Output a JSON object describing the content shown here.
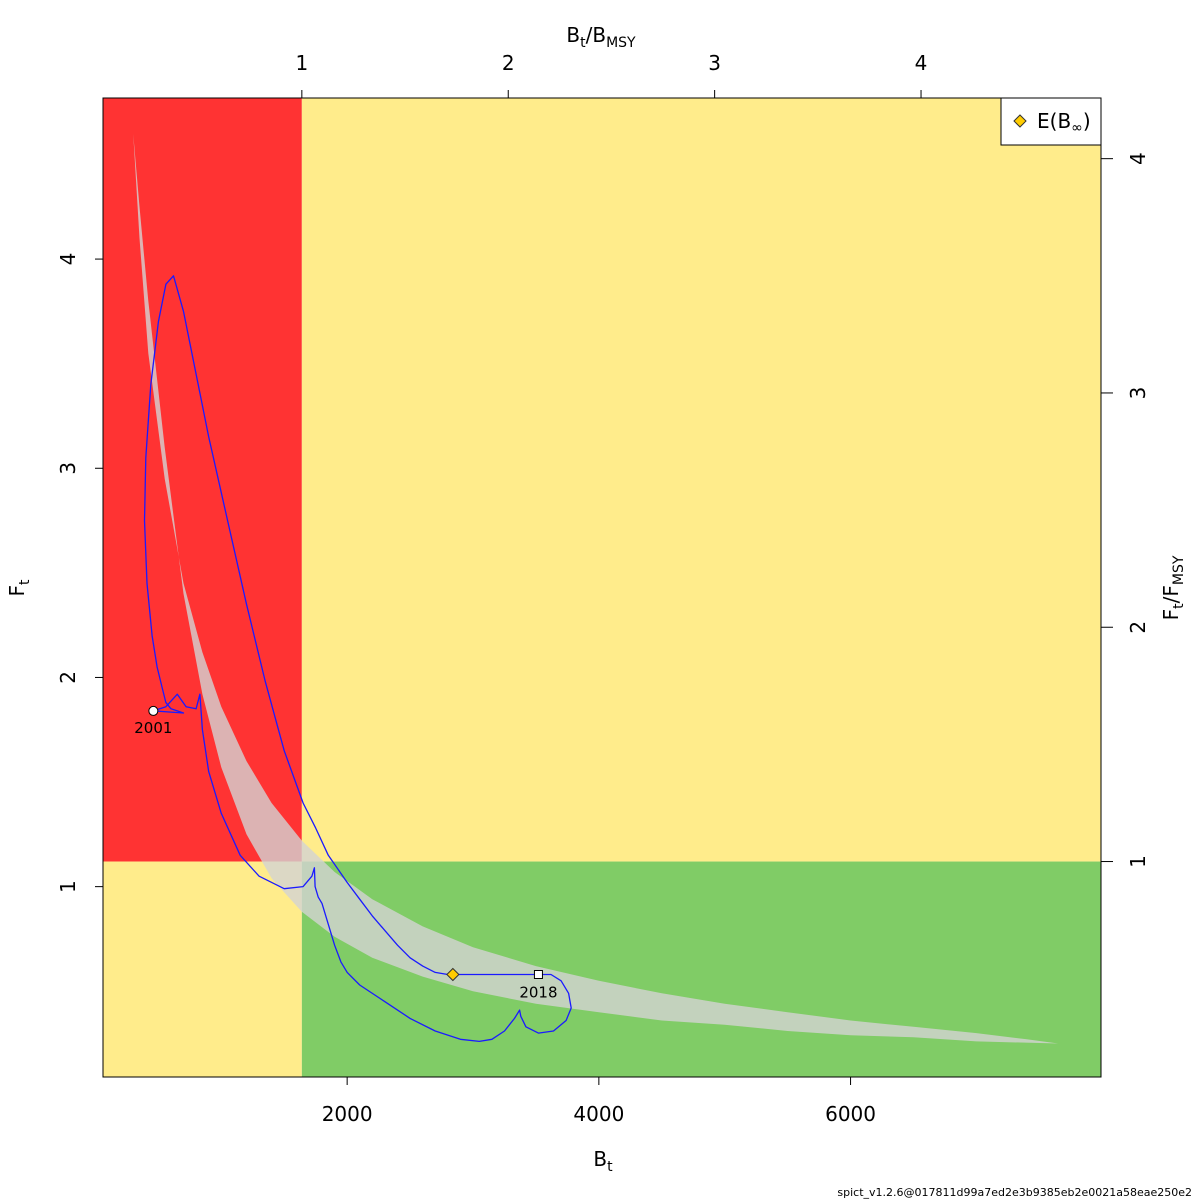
{
  "chart_data": {
    "type": "scatter",
    "title": "",
    "x_axis": {
      "label": "B",
      "label_sub": "t",
      "range": [
        60,
        7990
      ],
      "ticks": [
        2000,
        4000,
        6000
      ],
      "tick_labels": [
        "2000",
        "4000",
        "6000"
      ]
    },
    "y_axis": {
      "label": "F",
      "label_sub": "t",
      "range": [
        0.09,
        4.77
      ],
      "ticks": [
        1,
        2,
        3,
        4
      ],
      "tick_labels": [
        "1",
        "2",
        "3",
        "4"
      ]
    },
    "top_axis": {
      "label_num": "B",
      "label_num_sub": "t",
      "label_den": "B",
      "label_den_sub": "MSY",
      "ticks": [
        1,
        2,
        3,
        4
      ],
      "tick_labels": [
        "1",
        "2",
        "3",
        "4"
      ],
      "bmsy": 1640
    },
    "right_axis": {
      "label_num": "F",
      "label_num_sub": "t",
      "label_den": "F",
      "label_den_sub": "MSY",
      "ticks": [
        1,
        2,
        3,
        4
      ],
      "tick_labels": [
        "1",
        "2",
        "3",
        "4"
      ],
      "fmsy": 1.12
    },
    "zone_colors": {
      "overfished_overfishing": "#ff3333",
      "mixed": "#ffec8b",
      "healthy": "#80cc66",
      "confidence_region": "#d3d3d3",
      "trajectory": "#1a1aff"
    },
    "confidence_region": {
      "upper": [
        [
          300,
          4.6
        ],
        [
          350,
          4.1
        ],
        [
          420,
          3.55
        ],
        [
          550,
          2.95
        ],
        [
          700,
          2.45
        ],
        [
          850,
          2.12
        ],
        [
          1000,
          1.86
        ],
        [
          1200,
          1.6
        ],
        [
          1400,
          1.4
        ],
        [
          1640,
          1.22
        ],
        [
          1900,
          1.07
        ],
        [
          2200,
          0.94
        ],
        [
          2600,
          0.81
        ],
        [
          3000,
          0.71
        ],
        [
          3500,
          0.62
        ],
        [
          4000,
          0.55
        ],
        [
          4500,
          0.49
        ],
        [
          5000,
          0.44
        ],
        [
          5500,
          0.4
        ],
        [
          6000,
          0.36
        ],
        [
          6500,
          0.33
        ],
        [
          7000,
          0.3
        ],
        [
          7400,
          0.27
        ],
        [
          7650,
          0.25
        ]
      ],
      "lower": [
        [
          7650,
          0.25
        ],
        [
          7000,
          0.26
        ],
        [
          6500,
          0.28
        ],
        [
          6000,
          0.29
        ],
        [
          5500,
          0.31
        ],
        [
          5000,
          0.34
        ],
        [
          4500,
          0.36
        ],
        [
          4000,
          0.4
        ],
        [
          3500,
          0.44
        ],
        [
          3000,
          0.5
        ],
        [
          2600,
          0.57
        ],
        [
          2200,
          0.66
        ],
        [
          1900,
          0.76
        ],
        [
          1640,
          0.88
        ],
        [
          1400,
          1.04
        ],
        [
          1200,
          1.25
        ],
        [
          1000,
          1.57
        ],
        [
          850,
          1.92
        ],
        [
          700,
          2.4
        ],
        [
          550,
          3.1
        ],
        [
          420,
          3.8
        ],
        [
          350,
          4.25
        ],
        [
          300,
          4.6
        ]
      ]
    },
    "trajectory": [
      [
        460,
        1.84
      ],
      [
        560,
        1.86
      ],
      [
        650,
        1.92
      ],
      [
        720,
        1.86
      ],
      [
        800,
        1.85
      ],
      [
        830,
        1.92
      ],
      [
        850,
        1.75
      ],
      [
        900,
        1.55
      ],
      [
        1000,
        1.35
      ],
      [
        1150,
        1.15
      ],
      [
        1300,
        1.05
      ],
      [
        1500,
        0.99
      ],
      [
        1650,
        1.0
      ],
      [
        1720,
        1.05
      ],
      [
        1740,
        1.09
      ],
      [
        1745,
        1.0
      ],
      [
        1770,
        0.95
      ],
      [
        1800,
        0.92
      ],
      [
        1850,
        0.82
      ],
      [
        1900,
        0.72
      ],
      [
        1950,
        0.64
      ],
      [
        2000,
        0.59
      ],
      [
        2100,
        0.53
      ],
      [
        2300,
        0.45
      ],
      [
        2500,
        0.37
      ],
      [
        2700,
        0.31
      ],
      [
        2900,
        0.27
      ],
      [
        3050,
        0.26
      ],
      [
        3150,
        0.27
      ],
      [
        3250,
        0.31
      ],
      [
        3330,
        0.37
      ],
      [
        3370,
        0.41
      ],
      [
        3380,
        0.38
      ],
      [
        3420,
        0.33
      ],
      [
        3520,
        0.3
      ],
      [
        3640,
        0.31
      ],
      [
        3740,
        0.36
      ],
      [
        3780,
        0.42
      ],
      [
        3760,
        0.49
      ],
      [
        3700,
        0.55
      ],
      [
        3620,
        0.58
      ],
      [
        3550,
        0.58
      ],
      [
        3520,
        0.58
      ],
      [
        3480,
        0.58
      ],
      [
        3300,
        0.58
      ],
      [
        3100,
        0.58
      ],
      [
        2960,
        0.58
      ],
      [
        2850,
        0.58
      ],
      [
        2800,
        0.58
      ],
      [
        2700,
        0.59
      ],
      [
        2600,
        0.62
      ],
      [
        2500,
        0.66
      ],
      [
        2400,
        0.72
      ],
      [
        2300,
        0.79
      ],
      [
        2200,
        0.86
      ],
      [
        2100,
        0.94
      ],
      [
        2000,
        1.02
      ],
      [
        1850,
        1.15
      ],
      [
        1750,
        1.28
      ],
      [
        1650,
        1.4
      ],
      [
        1500,
        1.65
      ],
      [
        1350,
        1.98
      ],
      [
        1200,
        2.35
      ],
      [
        1050,
        2.75
      ],
      [
        900,
        3.15
      ],
      [
        800,
        3.45
      ],
      [
        700,
        3.75
      ],
      [
        620,
        3.92
      ],
      [
        560,
        3.88
      ],
      [
        500,
        3.7
      ],
      [
        440,
        3.4
      ],
      [
        400,
        3.05
      ],
      [
        390,
        2.75
      ],
      [
        410,
        2.45
      ],
      [
        450,
        2.2
      ],
      [
        490,
        2.05
      ],
      [
        530,
        1.95
      ],
      [
        560,
        1.88
      ],
      [
        600,
        1.85
      ],
      [
        650,
        1.84
      ],
      [
        700,
        1.83
      ],
      [
        460,
        1.84
      ]
    ],
    "start_point": {
      "x": 460,
      "y": 1.84,
      "label": "2001"
    },
    "end_point": {
      "x": 3520,
      "y": 0.58,
      "label": "2018"
    },
    "equilibrium_point": {
      "x": 2840,
      "y": 0.58
    },
    "legend": {
      "position": "top-right",
      "entries": [
        {
          "label": "E(B",
          "label_sub": "∞",
          "label_tail": ")",
          "marker": "diamond",
          "color": "#ffcc00"
        }
      ]
    }
  },
  "footer": {
    "text": "spict_v1.2.6@017811d99a7ed2e3b9385eb2e0021a58eae250e2"
  }
}
